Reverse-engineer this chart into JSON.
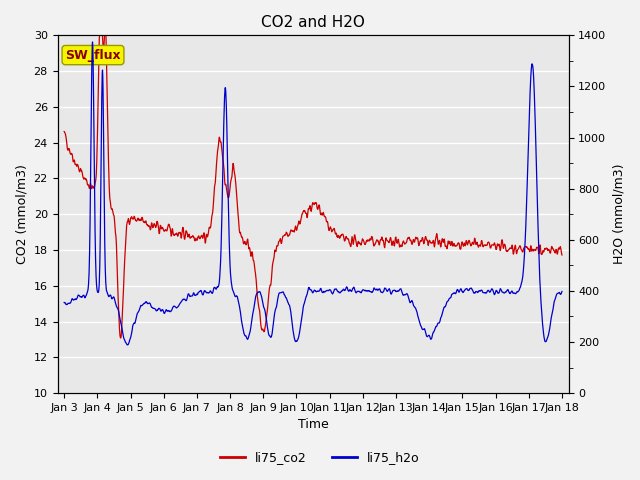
{
  "title": "CO2 and H2O",
  "xlabel": "Time",
  "ylabel_left": "CO2 (mmol/m3)",
  "ylabel_right": "H2O (mmol/m3)",
  "ylim_left": [
    10,
    30
  ],
  "ylim_right": [
    0,
    1400
  ],
  "yticks_left": [
    10,
    12,
    14,
    16,
    18,
    20,
    22,
    24,
    26,
    28,
    30
  ],
  "yticks_right": [
    0,
    200,
    400,
    600,
    800,
    1000,
    1200,
    1400
  ],
  "xtick_labels": [
    "Jan 3",
    "Jan 4",
    "Jan 5",
    "Jan 6",
    "Jan 7",
    "Jan 8",
    "Jan 9",
    "Jan 10",
    "Jan 11",
    "Jan 12",
    "Jan 13",
    "Jan 14",
    "Jan 15",
    "Jan 16",
    "Jan 17",
    "Jan 18"
  ],
  "color_co2": "#cc0000",
  "color_h2o": "#0000cc",
  "legend_co2": "li75_co2",
  "legend_h2o": "li75_h2o",
  "annotation_text": "SW_flux",
  "background_color": "#e8e8e8",
  "plot_bg_color": "#e8e8e8",
  "fig_bg_color": "#f2f2f2",
  "grid_color": "#ffffff",
  "title_fontsize": 11,
  "axis_fontsize": 9,
  "tick_fontsize": 8,
  "legend_fontsize": 9,
  "linewidth_co2": 0.9,
  "linewidth_h2o": 0.9
}
